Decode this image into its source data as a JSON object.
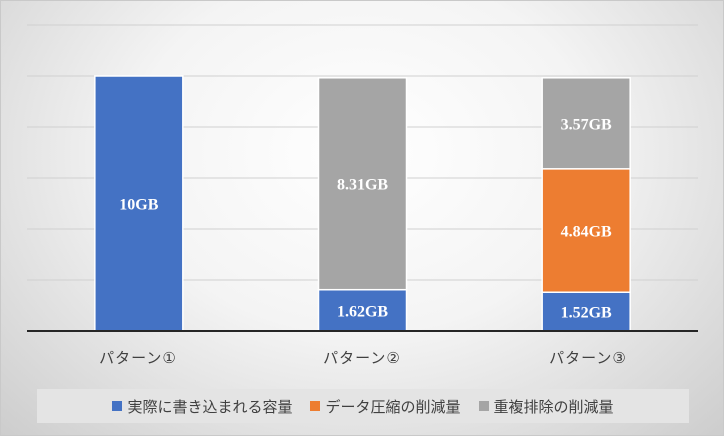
{
  "chart_data": {
    "type": "bar",
    "stacked": true,
    "categories": [
      "パターン①",
      "パターン②",
      "パターン③"
    ],
    "series": [
      {
        "name": "実際に書き込まれる容量",
        "values": [
          10,
          1.62,
          1.52
        ],
        "labels": [
          "10GB",
          "1.62GB",
          "1.52GB"
        ],
        "color": "#4472c4"
      },
      {
        "name": "データ圧縮の削減量",
        "values": [
          0,
          0,
          4.84
        ],
        "labels": [
          "",
          "",
          "4.84GB"
        ],
        "color": "#ed7d31"
      },
      {
        "name": "重複排除の削減量",
        "values": [
          0,
          8.31,
          3.57
        ],
        "labels": [
          "",
          "8.31GB",
          "3.57GB"
        ],
        "color": "#a5a5a5"
      }
    ],
    "ylim": [
      0,
      12
    ],
    "y_gridline_step": 2,
    "y_axis_labels_shown": false,
    "grid": true,
    "legend_position": "bottom",
    "title": "",
    "xlabel": "",
    "ylabel": ""
  }
}
